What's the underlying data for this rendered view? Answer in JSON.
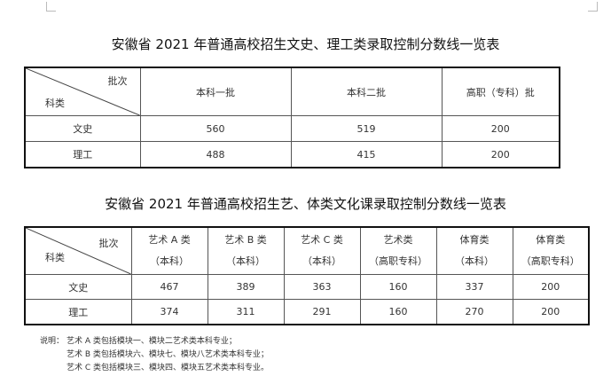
{
  "table1": {
    "title": "安徽省 2021 年普通高校招生文史、理工类录取控制分数线一览表",
    "corner_top": "批次",
    "corner_bottom": "科类",
    "headers": [
      "本科一批",
      "本科二批",
      "高职（专科）批"
    ],
    "rows": [
      {
        "label": "文史",
        "values": [
          "560",
          "519",
          "200"
        ]
      },
      {
        "label": "理工",
        "values": [
          "488",
          "415",
          "200"
        ]
      }
    ]
  },
  "table2": {
    "title": "安徽省 2021 年普通高校招生艺、体类文化课录取控制分数线一览表",
    "corner_top": "批次",
    "corner_bottom": "科类",
    "headers": [
      {
        "line1": "艺术 A 类",
        "line2": "（本科）"
      },
      {
        "line1": "艺术 B 类",
        "line2": "（本科）"
      },
      {
        "line1": "艺术 C 类",
        "line2": "（本科）"
      },
      {
        "line1": "艺术类",
        "line2": "（高职专科）"
      },
      {
        "line1": "体育类",
        "line2": "（本科）"
      },
      {
        "line1": "体育类",
        "line2": "（高职专科）"
      }
    ],
    "rows": [
      {
        "label": "文史",
        "values": [
          "467",
          "389",
          "363",
          "160",
          "337",
          "200"
        ]
      },
      {
        "label": "理工",
        "values": [
          "374",
          "311",
          "291",
          "160",
          "270",
          "200"
        ]
      }
    ]
  },
  "note": {
    "label": "说明：",
    "lines": [
      "艺术 A 类包括模块一、模块二艺术类本科专业；",
      "艺术 B 类包括模块六、模块七、模块八艺术类本科专业；",
      "艺术 C 类包括模块三、模块四、模块五艺术类本科专业。"
    ]
  }
}
